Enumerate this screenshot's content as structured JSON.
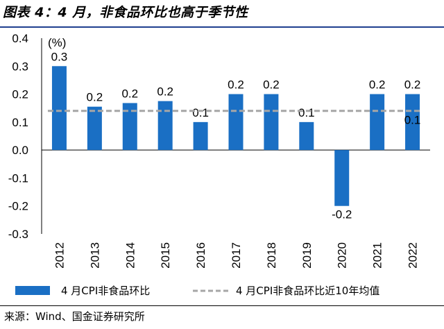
{
  "header": {
    "title": "图表 4：4 月，非食品环比也高于季节性"
  },
  "source": {
    "text": "来源：Wind、国金证券研究所"
  },
  "chart_data": {
    "type": "bar",
    "unit_label": "(%)",
    "categories": [
      "2012",
      "2013",
      "2014",
      "2015",
      "2016",
      "2017",
      "2018",
      "2019",
      "2020",
      "2021",
      "2022"
    ],
    "series": [
      {
        "name": "4 月CPI非食品环比",
        "type": "bar",
        "color": "#1a6fc4",
        "values": [
          0.3,
          0.155,
          0.168,
          0.175,
          0.1,
          0.2,
          0.2,
          0.1,
          -0.2,
          0.2,
          0.2
        ],
        "data_labels": [
          "0.3",
          "0.2",
          "0.2",
          "0.2",
          "0.1",
          "0.2",
          "0.2",
          "0.1",
          "-0.2",
          "0.2",
          "0.2"
        ]
      },
      {
        "name": "4 月CPI非食品环比近10年均值",
        "type": "line",
        "style": "dashed",
        "color": "#a6a6a6",
        "values": [
          0.14,
          0.14,
          0.14,
          0.14,
          0.14,
          0.14,
          0.14,
          0.14,
          0.14,
          0.14,
          0.14
        ],
        "end_label": "0.1"
      }
    ],
    "y_ticks": [
      "0.4",
      "0.3",
      "0.2",
      "0.1",
      "0.0",
      "-0.1",
      "-0.2",
      "-0.3"
    ],
    "ylim": [
      -0.3,
      0.4
    ],
    "grid": false,
    "legend_position": "bottom"
  }
}
